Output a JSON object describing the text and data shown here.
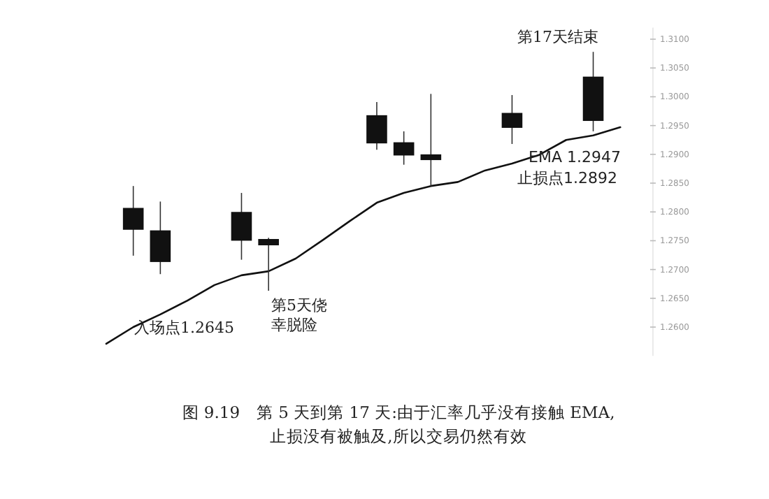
{
  "chart_data": {
    "type": "candlestick",
    "title": "图 9.19　第 5 天到第 17 天:由于汇率几乎没有接触 EMA,止损没有被触及,所以交易仍然有效",
    "categories": [
      null,
      null,
      null,
      null,
      null,
      null,
      null,
      null,
      null,
      null,
      null,
      null,
      null,
      null,
      null,
      null,
      null,
      null,
      null,
      null
    ],
    "ohlc": [
      null,
      [
        1.2806,
        1.2845,
        1.2724,
        1.277
      ],
      [
        1.2767,
        1.2818,
        1.2692,
        1.2714
      ],
      null,
      null,
      [
        1.2799,
        1.2833,
        1.2717,
        1.2751
      ],
      [
        1.2752,
        1.2755,
        1.2663,
        1.2743
      ],
      null,
      null,
      null,
      [
        1.2967,
        1.2991,
        1.2908,
        1.292
      ],
      [
        1.292,
        1.294,
        1.2882,
        1.2899
      ],
      [
        1.2899,
        1.3005,
        1.2845,
        1.2891
      ],
      null,
      null,
      [
        1.2971,
        1.3003,
        1.2918,
        1.2947
      ],
      null,
      null,
      [
        1.3034,
        1.3078,
        1.294,
        1.2959
      ],
      null
    ],
    "series": [
      {
        "type": "line",
        "color": "#111111",
        "values": [
          1.2571,
          1.26,
          1.2622,
          1.2646,
          1.2673,
          1.269,
          1.2697,
          1.2719,
          1.2751,
          1.2784,
          1.2816,
          1.2833,
          1.2845,
          1.2852,
          1.2872,
          1.2884,
          1.2899,
          1.2925,
          1.2933,
          1.2947
        ]
      }
    ],
    "ylim": [
      1.255,
      1.312
    ],
    "yticks": [
      {
        "value": 1.26,
        "label": "1.2600"
      },
      {
        "value": 1.265,
        "label": "1.2650"
      },
      {
        "value": 1.27,
        "label": "1.2700"
      },
      {
        "value": 1.275,
        "label": "1.2750"
      },
      {
        "value": 1.28,
        "label": "1.2800"
      },
      {
        "value": 1.285,
        "label": "1.2850"
      },
      {
        "value": 1.29,
        "label": "1.2900"
      },
      {
        "value": 1.295,
        "label": "1.2950"
      },
      {
        "value": 1.3,
        "label": "1.3000"
      },
      {
        "value": 1.305,
        "label": "1.3050"
      },
      {
        "value": 1.31,
        "label": "1.3100"
      }
    ],
    "tick_labels": "y",
    "annotations": [
      "入场点1.2645",
      "第5天侥幸脱险",
      "第17天结束",
      "EMA 1.2947",
      "止损点1.2892"
    ]
  }
}
